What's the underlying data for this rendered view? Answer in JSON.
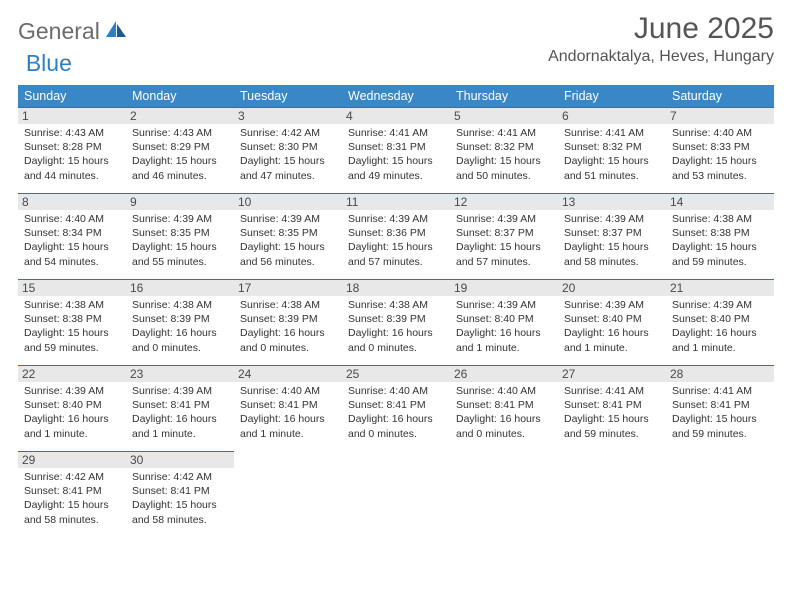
{
  "brand": {
    "part1": "General",
    "part2": "Blue"
  },
  "title": "June 2025",
  "location": "Andornaktalya, Heves, Hungary",
  "day_headers": [
    "Sunday",
    "Monday",
    "Tuesday",
    "Wednesday",
    "Thursday",
    "Friday",
    "Saturday"
  ],
  "colors": {
    "header_bg": "#3a87c8",
    "header_text": "#ffffff",
    "rule": "#3a6fa0",
    "daynum_bg": "#e8e8e8",
    "brand_gray": "#6b6b6b",
    "brand_blue": "#2f7fbf"
  },
  "weeks": [
    [
      {
        "n": "1",
        "sr": "4:43 AM",
        "ss": "8:28 PM",
        "dl": "15 hours and 44 minutes."
      },
      {
        "n": "2",
        "sr": "4:43 AM",
        "ss": "8:29 PM",
        "dl": "15 hours and 46 minutes."
      },
      {
        "n": "3",
        "sr": "4:42 AM",
        "ss": "8:30 PM",
        "dl": "15 hours and 47 minutes."
      },
      {
        "n": "4",
        "sr": "4:41 AM",
        "ss": "8:31 PM",
        "dl": "15 hours and 49 minutes."
      },
      {
        "n": "5",
        "sr": "4:41 AM",
        "ss": "8:32 PM",
        "dl": "15 hours and 50 minutes."
      },
      {
        "n": "6",
        "sr": "4:41 AM",
        "ss": "8:32 PM",
        "dl": "15 hours and 51 minutes."
      },
      {
        "n": "7",
        "sr": "4:40 AM",
        "ss": "8:33 PM",
        "dl": "15 hours and 53 minutes."
      }
    ],
    [
      {
        "n": "8",
        "sr": "4:40 AM",
        "ss": "8:34 PM",
        "dl": "15 hours and 54 minutes."
      },
      {
        "n": "9",
        "sr": "4:39 AM",
        "ss": "8:35 PM",
        "dl": "15 hours and 55 minutes."
      },
      {
        "n": "10",
        "sr": "4:39 AM",
        "ss": "8:35 PM",
        "dl": "15 hours and 56 minutes."
      },
      {
        "n": "11",
        "sr": "4:39 AM",
        "ss": "8:36 PM",
        "dl": "15 hours and 57 minutes."
      },
      {
        "n": "12",
        "sr": "4:39 AM",
        "ss": "8:37 PM",
        "dl": "15 hours and 57 minutes."
      },
      {
        "n": "13",
        "sr": "4:39 AM",
        "ss": "8:37 PM",
        "dl": "15 hours and 58 minutes."
      },
      {
        "n": "14",
        "sr": "4:38 AM",
        "ss": "8:38 PM",
        "dl": "15 hours and 59 minutes."
      }
    ],
    [
      {
        "n": "15",
        "sr": "4:38 AM",
        "ss": "8:38 PM",
        "dl": "15 hours and 59 minutes."
      },
      {
        "n": "16",
        "sr": "4:38 AM",
        "ss": "8:39 PM",
        "dl": "16 hours and 0 minutes."
      },
      {
        "n": "17",
        "sr": "4:38 AM",
        "ss": "8:39 PM",
        "dl": "16 hours and 0 minutes."
      },
      {
        "n": "18",
        "sr": "4:38 AM",
        "ss": "8:39 PM",
        "dl": "16 hours and 0 minutes."
      },
      {
        "n": "19",
        "sr": "4:39 AM",
        "ss": "8:40 PM",
        "dl": "16 hours and 1 minute."
      },
      {
        "n": "20",
        "sr": "4:39 AM",
        "ss": "8:40 PM",
        "dl": "16 hours and 1 minute."
      },
      {
        "n": "21",
        "sr": "4:39 AM",
        "ss": "8:40 PM",
        "dl": "16 hours and 1 minute."
      }
    ],
    [
      {
        "n": "22",
        "sr": "4:39 AM",
        "ss": "8:40 PM",
        "dl": "16 hours and 1 minute."
      },
      {
        "n": "23",
        "sr": "4:39 AM",
        "ss": "8:41 PM",
        "dl": "16 hours and 1 minute."
      },
      {
        "n": "24",
        "sr": "4:40 AM",
        "ss": "8:41 PM",
        "dl": "16 hours and 1 minute."
      },
      {
        "n": "25",
        "sr": "4:40 AM",
        "ss": "8:41 PM",
        "dl": "16 hours and 0 minutes."
      },
      {
        "n": "26",
        "sr": "4:40 AM",
        "ss": "8:41 PM",
        "dl": "16 hours and 0 minutes."
      },
      {
        "n": "27",
        "sr": "4:41 AM",
        "ss": "8:41 PM",
        "dl": "15 hours and 59 minutes."
      },
      {
        "n": "28",
        "sr": "4:41 AM",
        "ss": "8:41 PM",
        "dl": "15 hours and 59 minutes."
      }
    ],
    [
      {
        "n": "29",
        "sr": "4:42 AM",
        "ss": "8:41 PM",
        "dl": "15 hours and 58 minutes."
      },
      {
        "n": "30",
        "sr": "4:42 AM",
        "ss": "8:41 PM",
        "dl": "15 hours and 58 minutes."
      },
      null,
      null,
      null,
      null,
      null
    ]
  ],
  "labels": {
    "sunrise": "Sunrise: ",
    "sunset": "Sunset: ",
    "daylight": "Daylight: "
  }
}
